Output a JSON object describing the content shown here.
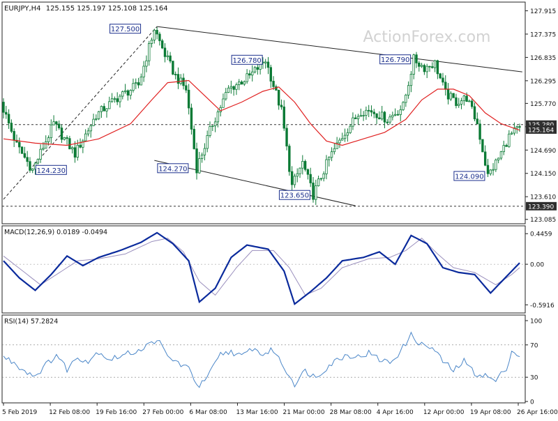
{
  "header": {
    "symbol": "EURJPY,H4",
    "ohlc": "125.155 125.197 125.108 125.164"
  },
  "watermark": "ActionForex.com",
  "colors": {
    "candle": "#0b7a35",
    "ma": "#e02020",
    "macd": "#0a2a9c",
    "signal": "#9a8fbd",
    "rsi": "#4a86c8",
    "axis": "#222222",
    "label_bg": "#2f2f2f"
  },
  "chart_data": [
    {
      "type": "candlestick",
      "panel": "price",
      "x_ticks": [
        "5 Feb 2019",
        "12 Feb 08:00",
        "19 Feb 16:00",
        "27 Feb 00:00",
        "6 Mar 08:00",
        "13 Mar 16:00",
        "21 Mar 00:00",
        "28 Mar 08:00",
        "4 Apr 16:00",
        "12 Apr 00:00",
        "19 Apr 08:00",
        "26 Apr 16:00"
      ],
      "y_ticks": [
        "127.915",
        "127.375",
        "126.835",
        "126.295",
        "125.770",
        "125.230",
        "124.690",
        "124.150",
        "123.610",
        "123.085"
      ],
      "ylim": [
        123.0,
        128.1
      ],
      "price_path": [
        {
          "bar": 0,
          "price": 125.8
        },
        {
          "bar": 6,
          "price": 124.8
        },
        {
          "bar": 12,
          "price": 124.23
        },
        {
          "bar": 20,
          "price": 125.3
        },
        {
          "bar": 28,
          "price": 124.6
        },
        {
          "bar": 36,
          "price": 125.5
        },
        {
          "bar": 44,
          "price": 125.9
        },
        {
          "bar": 52,
          "price": 126.2
        },
        {
          "bar": 58,
          "price": 127.5
        },
        {
          "bar": 62,
          "price": 126.9
        },
        {
          "bar": 66,
          "price": 126.4
        },
        {
          "bar": 70,
          "price": 126.1
        },
        {
          "bar": 74,
          "price": 124.27
        },
        {
          "bar": 80,
          "price": 125.3
        },
        {
          "bar": 86,
          "price": 126.1
        },
        {
          "bar": 94,
          "price": 126.4
        },
        {
          "bar": 100,
          "price": 126.78
        },
        {
          "bar": 106,
          "price": 125.6
        },
        {
          "bar": 110,
          "price": 123.85
        },
        {
          "bar": 114,
          "price": 124.4
        },
        {
          "bar": 118,
          "price": 123.65
        },
        {
          "bar": 124,
          "price": 124.5
        },
        {
          "bar": 130,
          "price": 125.1
        },
        {
          "bar": 136,
          "price": 125.6
        },
        {
          "bar": 140,
          "price": 125.6
        },
        {
          "bar": 146,
          "price": 125.4
        },
        {
          "bar": 152,
          "price": 125.7
        },
        {
          "bar": 156,
          "price": 126.79
        },
        {
          "bar": 160,
          "price": 126.6
        },
        {
          "bar": 164,
          "price": 126.7
        },
        {
          "bar": 168,
          "price": 126.0
        },
        {
          "bar": 172,
          "price": 125.8
        },
        {
          "bar": 176,
          "price": 125.9
        },
        {
          "bar": 180,
          "price": 125.3
        },
        {
          "bar": 184,
          "price": 124.09
        },
        {
          "bar": 188,
          "price": 124.5
        },
        {
          "bar": 192,
          "price": 125.0
        },
        {
          "bar": 195,
          "price": 125.16
        }
      ],
      "ma_path": [
        {
          "bar": 0,
          "price": 124.95
        },
        {
          "bar": 12,
          "price": 124.85
        },
        {
          "bar": 24,
          "price": 124.8
        },
        {
          "bar": 36,
          "price": 124.95
        },
        {
          "bar": 48,
          "price": 125.3
        },
        {
          "bar": 56,
          "price": 125.85
        },
        {
          "bar": 62,
          "price": 126.25
        },
        {
          "bar": 70,
          "price": 126.3
        },
        {
          "bar": 76,
          "price": 125.95
        },
        {
          "bar": 82,
          "price": 125.6
        },
        {
          "bar": 90,
          "price": 125.8
        },
        {
          "bar": 98,
          "price": 126.05
        },
        {
          "bar": 104,
          "price": 126.15
        },
        {
          "bar": 110,
          "price": 125.8
        },
        {
          "bar": 116,
          "price": 125.3
        },
        {
          "bar": 122,
          "price": 124.9
        },
        {
          "bar": 128,
          "price": 124.8
        },
        {
          "bar": 136,
          "price": 124.95
        },
        {
          "bar": 144,
          "price": 125.1
        },
        {
          "bar": 152,
          "price": 125.4
        },
        {
          "bar": 158,
          "price": 125.85
        },
        {
          "bar": 164,
          "price": 126.1
        },
        {
          "bar": 170,
          "price": 126.1
        },
        {
          "bar": 176,
          "price": 125.95
        },
        {
          "bar": 182,
          "price": 125.55
        },
        {
          "bar": 188,
          "price": 125.3
        },
        {
          "bar": 195,
          "price": 125.15
        }
      ],
      "trendlines": [
        {
          "style": "solid",
          "from": {
            "bar": 58,
            "price": 127.55
          },
          "to": {
            "bar": 196,
            "price": 126.5
          }
        },
        {
          "style": "solid",
          "from": {
            "bar": 57,
            "price": 124.45
          },
          "to": {
            "bar": 133,
            "price": 123.4
          }
        },
        {
          "style": "dashed",
          "from": {
            "bar": 0,
            "price": 123.55
          },
          "to": {
            "bar": 58,
            "price": 127.55
          }
        }
      ],
      "hlines": [
        {
          "price": 125.28,
          "style": "dashed"
        },
        {
          "price": 123.39,
          "style": "dashed"
        }
      ],
      "price_labels": [
        {
          "text": "127.500",
          "bar": 46
        },
        {
          "text": "126.780",
          "bar": 92
        },
        {
          "text": "126.790",
          "bar": 148
        },
        {
          "text": "124.230",
          "bar": 18
        },
        {
          "text": "124.270",
          "bar": 64
        },
        {
          "text": "123.650",
          "bar": 110
        },
        {
          "text": "124.090",
          "bar": 176
        }
      ],
      "axis_markers": [
        {
          "text": "125.280",
          "price": 125.28
        },
        {
          "text": "125.164",
          "price": 125.164
        },
        {
          "text": "123.390",
          "price": 123.39
        }
      ]
    },
    {
      "type": "line",
      "panel": "macd",
      "title": "MACD(12,26,9) 0.0189 -0.0494",
      "y_ticks": [
        "0.4459",
        "0.00",
        "-0.5916"
      ],
      "ylim": [
        -0.7,
        0.55
      ],
      "macd_path": [
        {
          "bar": 0,
          "value": 0.05
        },
        {
          "bar": 6,
          "value": -0.2
        },
        {
          "bar": 12,
          "value": -0.38
        },
        {
          "bar": 18,
          "value": -0.15
        },
        {
          "bar": 24,
          "value": 0.12
        },
        {
          "bar": 30,
          "value": -0.02
        },
        {
          "bar": 36,
          "value": 0.1
        },
        {
          "bar": 44,
          "value": 0.2
        },
        {
          "bar": 52,
          "value": 0.32
        },
        {
          "bar": 58,
          "value": 0.46
        },
        {
          "bar": 64,
          "value": 0.3
        },
        {
          "bar": 70,
          "value": 0.05
        },
        {
          "bar": 74,
          "value": -0.55
        },
        {
          "bar": 80,
          "value": -0.35
        },
        {
          "bar": 86,
          "value": 0.1
        },
        {
          "bar": 92,
          "value": 0.28
        },
        {
          "bar": 100,
          "value": 0.22
        },
        {
          "bar": 106,
          "value": -0.1
        },
        {
          "bar": 110,
          "value": -0.58
        },
        {
          "bar": 116,
          "value": -0.4
        },
        {
          "bar": 122,
          "value": -0.2
        },
        {
          "bar": 128,
          "value": 0.05
        },
        {
          "bar": 136,
          "value": 0.1
        },
        {
          "bar": 142,
          "value": 0.18
        },
        {
          "bar": 148,
          "value": 0.0
        },
        {
          "bar": 154,
          "value": 0.42
        },
        {
          "bar": 160,
          "value": 0.3
        },
        {
          "bar": 166,
          "value": -0.05
        },
        {
          "bar": 172,
          "value": -0.12
        },
        {
          "bar": 178,
          "value": -0.15
        },
        {
          "bar": 184,
          "value": -0.42
        },
        {
          "bar": 190,
          "value": -0.18
        },
        {
          "bar": 195,
          "value": 0.02
        }
      ],
      "signal_path": [
        {
          "bar": 0,
          "value": 0.12
        },
        {
          "bar": 8,
          "value": -0.12
        },
        {
          "bar": 14,
          "value": -0.3
        },
        {
          "bar": 20,
          "value": -0.15
        },
        {
          "bar": 28,
          "value": 0.05
        },
        {
          "bar": 36,
          "value": 0.08
        },
        {
          "bar": 46,
          "value": 0.15
        },
        {
          "bar": 56,
          "value": 0.33
        },
        {
          "bar": 62,
          "value": 0.38
        },
        {
          "bar": 68,
          "value": 0.18
        },
        {
          "bar": 74,
          "value": -0.25
        },
        {
          "bar": 80,
          "value": -0.45
        },
        {
          "bar": 88,
          "value": -0.05
        },
        {
          "bar": 94,
          "value": 0.2
        },
        {
          "bar": 102,
          "value": 0.2
        },
        {
          "bar": 108,
          "value": -0.05
        },
        {
          "bar": 114,
          "value": -0.45
        },
        {
          "bar": 120,
          "value": -0.35
        },
        {
          "bar": 128,
          "value": -0.05
        },
        {
          "bar": 138,
          "value": 0.08
        },
        {
          "bar": 146,
          "value": 0.1
        },
        {
          "bar": 152,
          "value": 0.2
        },
        {
          "bar": 158,
          "value": 0.38
        },
        {
          "bar": 164,
          "value": 0.15
        },
        {
          "bar": 170,
          "value": -0.05
        },
        {
          "bar": 178,
          "value": -0.12
        },
        {
          "bar": 186,
          "value": -0.3
        },
        {
          "bar": 192,
          "value": -0.15
        },
        {
          "bar": 195,
          "value": -0.05
        }
      ]
    },
    {
      "type": "line",
      "panel": "rsi",
      "title": "RSI(14) 57.2824",
      "y_ticks": [
        "100",
        "70",
        "30",
        "0"
      ],
      "ylim": [
        0,
        100
      ],
      "levels": [
        70,
        30
      ],
      "rsi_path": [
        {
          "bar": 0,
          "value": 55
        },
        {
          "bar": 4,
          "value": 48
        },
        {
          "bar": 8,
          "value": 38
        },
        {
          "bar": 12,
          "value": 32
        },
        {
          "bar": 16,
          "value": 45
        },
        {
          "bar": 20,
          "value": 58
        },
        {
          "bar": 24,
          "value": 40
        },
        {
          "bar": 28,
          "value": 55
        },
        {
          "bar": 32,
          "value": 50
        },
        {
          "bar": 36,
          "value": 62
        },
        {
          "bar": 40,
          "value": 52
        },
        {
          "bar": 44,
          "value": 56
        },
        {
          "bar": 48,
          "value": 60
        },
        {
          "bar": 52,
          "value": 65
        },
        {
          "bar": 56,
          "value": 72
        },
        {
          "bar": 58,
          "value": 78
        },
        {
          "bar": 62,
          "value": 55
        },
        {
          "bar": 66,
          "value": 48
        },
        {
          "bar": 70,
          "value": 40
        },
        {
          "bar": 74,
          "value": 18
        },
        {
          "bar": 78,
          "value": 35
        },
        {
          "bar": 82,
          "value": 58
        },
        {
          "bar": 86,
          "value": 62
        },
        {
          "bar": 90,
          "value": 55
        },
        {
          "bar": 94,
          "value": 66
        },
        {
          "bar": 98,
          "value": 58
        },
        {
          "bar": 102,
          "value": 64
        },
        {
          "bar": 106,
          "value": 42
        },
        {
          "bar": 110,
          "value": 22
        },
        {
          "bar": 114,
          "value": 38
        },
        {
          "bar": 118,
          "value": 30
        },
        {
          "bar": 122,
          "value": 42
        },
        {
          "bar": 126,
          "value": 52
        },
        {
          "bar": 130,
          "value": 58
        },
        {
          "bar": 134,
          "value": 55
        },
        {
          "bar": 138,
          "value": 60
        },
        {
          "bar": 142,
          "value": 52
        },
        {
          "bar": 146,
          "value": 48
        },
        {
          "bar": 150,
          "value": 62
        },
        {
          "bar": 154,
          "value": 82
        },
        {
          "bar": 158,
          "value": 70
        },
        {
          "bar": 162,
          "value": 66
        },
        {
          "bar": 166,
          "value": 50
        },
        {
          "bar": 170,
          "value": 38
        },
        {
          "bar": 174,
          "value": 50
        },
        {
          "bar": 178,
          "value": 35
        },
        {
          "bar": 182,
          "value": 32
        },
        {
          "bar": 186,
          "value": 25
        },
        {
          "bar": 190,
          "value": 42
        },
        {
          "bar": 192,
          "value": 62
        },
        {
          "bar": 195,
          "value": 57
        }
      ]
    }
  ]
}
